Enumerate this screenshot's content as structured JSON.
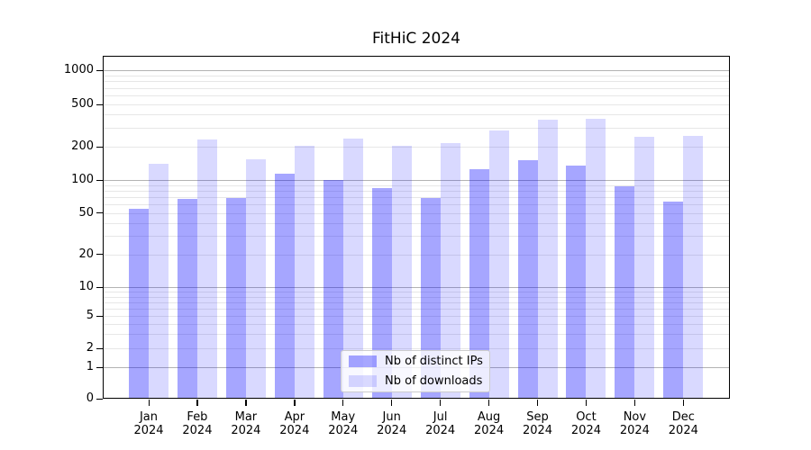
{
  "title": "FitHiC 2024",
  "chart_data": {
    "type": "bar",
    "title": "FitHiC 2024",
    "categories": [
      "Jan",
      "Feb",
      "Mar",
      "Apr",
      "May",
      "Jun",
      "Jul",
      "Aug",
      "Sep",
      "Oct",
      "Nov",
      "Dec"
    ],
    "x_year_label": "2024",
    "series": [
      {
        "name": "Nb of distinct IPs",
        "color": "rgba(0,0,255,0.35)",
        "values": [
          55,
          67,
          69,
          115,
          100,
          85,
          68,
          125,
          150,
          135,
          87,
          63
        ]
      },
      {
        "name": "Nb of downloads",
        "color": "rgba(0,0,255,0.15)",
        "values": [
          140,
          235,
          155,
          205,
          240,
          205,
          215,
          285,
          360,
          365,
          250,
          255
        ]
      }
    ],
    "y_ticks": [
      0,
      1,
      2,
      5,
      10,
      20,
      50,
      100,
      200,
      500,
      1000
    ],
    "y_scale": "symlog",
    "ylim": [
      0,
      1300
    ],
    "grid": true,
    "legend_position": "lower center"
  }
}
